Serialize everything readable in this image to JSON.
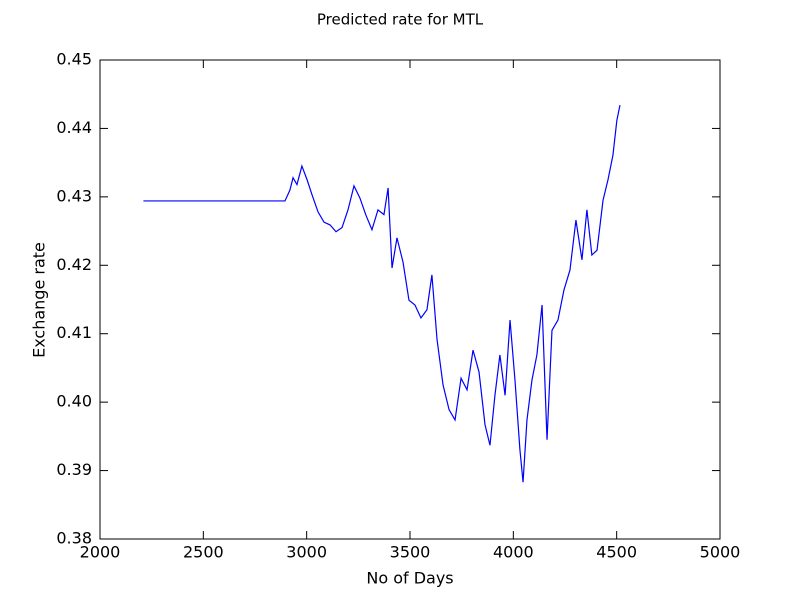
{
  "chart_data": {
    "type": "line",
    "title": "Predicted rate for MTL",
    "x_label": "No of Days",
    "y_label": "Exchange rate",
    "x": [
      2210,
      2895,
      2919,
      2934,
      2953,
      2977,
      3002,
      3026,
      3055,
      3084,
      3113,
      3142,
      3171,
      3200,
      3229,
      3258,
      3287,
      3316,
      3345,
      3374,
      3394,
      3413,
      3437,
      3466,
      3495,
      3524,
      3553,
      3582,
      3606,
      3631,
      3660,
      3689,
      3718,
      3747,
      3776,
      3805,
      3834,
      3863,
      3887,
      3911,
      3935,
      3960,
      3984,
      4008,
      4032,
      4047,
      4066,
      4090,
      4114,
      4139,
      4163,
      4187,
      4216,
      4245,
      4274,
      4303,
      4332,
      4356,
      4380,
      4405,
      4434,
      4458,
      4482,
      4501,
      4516
    ],
    "values": [
      0.4294,
      0.4294,
      0.431,
      0.4328,
      0.4318,
      0.4345,
      0.4325,
      0.4303,
      0.4278,
      0.4263,
      0.4259,
      0.4249,
      0.4255,
      0.4281,
      0.4316,
      0.4298,
      0.4273,
      0.4252,
      0.4281,
      0.4274,
      0.4313,
      0.4196,
      0.424,
      0.4205,
      0.4149,
      0.4142,
      0.4123,
      0.4135,
      0.4186,
      0.4091,
      0.4025,
      0.3989,
      0.3974,
      0.4035,
      0.4018,
      0.4076,
      0.4044,
      0.3967,
      0.3937,
      0.401,
      0.4069,
      0.401,
      0.412,
      0.4032,
      0.393,
      0.3883,
      0.3974,
      0.4032,
      0.4069,
      0.4142,
      0.3945,
      0.4105,
      0.412,
      0.4164,
      0.4193,
      0.4266,
      0.4208,
      0.4281,
      0.4215,
      0.4222,
      0.4295,
      0.4325,
      0.4361,
      0.4412,
      0.4434
    ],
    "color": "#0000ff",
    "xlim": [
      2000,
      5000
    ],
    "xticks": [
      2000,
      2500,
      3000,
      3500,
      4000,
      4500,
      5000
    ],
    "ylim": [
      0.38,
      0.45
    ],
    "yticks": [
      0.38,
      0.39,
      {
        "value": 0.4,
        "label": "0.40"
      },
      0.41,
      0.42,
      0.43,
      0.44,
      0.45
    ]
  }
}
